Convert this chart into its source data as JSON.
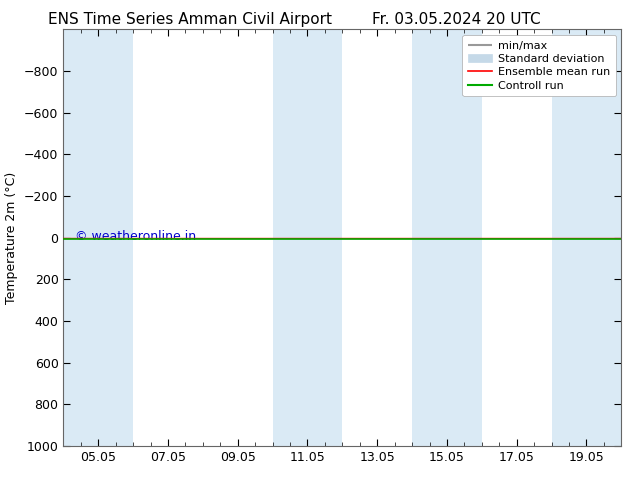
{
  "title_left": "ENS Time Series Amman Civil Airport",
  "title_right": "Fr. 03.05.2024 20 UTC",
  "ylabel": "Temperature 2m (°C)",
  "ylim_bottom": -1000,
  "ylim_top": 1000,
  "yticks": [
    -800,
    -600,
    -400,
    -200,
    0,
    200,
    400,
    600,
    800,
    1000
  ],
  "xtick_labels": [
    "05.05",
    "07.05",
    "09.05",
    "11.05",
    "13.05",
    "15.05",
    "17.05",
    "19.05"
  ],
  "x_min": 0.0,
  "x_max": 16.0,
  "xtick_positions": [
    1.0,
    3.0,
    5.0,
    7.0,
    9.0,
    11.0,
    13.0,
    15.0
  ],
  "shaded_bands": [
    [
      0.0,
      2.0
    ],
    [
      6.0,
      8.0
    ],
    [
      10.0,
      12.0
    ],
    [
      14.0,
      16.0
    ]
  ],
  "shaded_color": "#daeaf5",
  "bg_color": "#ffffff",
  "plot_bg_color": "#ffffff",
  "ensemble_mean_color": "#ff0000",
  "control_run_color": "#00aa00",
  "minmax_color": "#999999",
  "stddev_color": "#c5d9e8",
  "watermark": "© weatheronline.in",
  "watermark_color": "#0000cc",
  "title_fontsize": 11,
  "axis_fontsize": 9,
  "tick_fontsize": 9,
  "legend_fontsize": 8
}
